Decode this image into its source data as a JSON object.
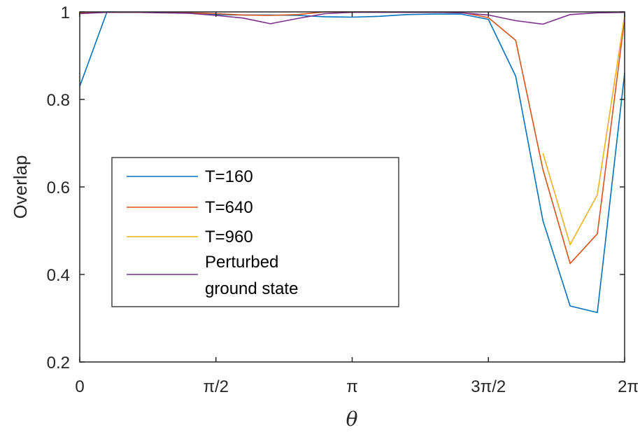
{
  "chart_data": {
    "type": "line",
    "xlabel": "θ",
    "ylabel": "Overlap",
    "xlim": [
      0,
      6.283185307
    ],
    "ylim": [
      0.2,
      1.0
    ],
    "grid": false,
    "legend_position": "center-left",
    "x_ticks": [
      {
        "value": 0,
        "label": "0"
      },
      {
        "value": 1.570796327,
        "label": "π/2"
      },
      {
        "value": 3.141592654,
        "label": "π"
      },
      {
        "value": 4.71238898,
        "label": "3π/2"
      },
      {
        "value": 6.283185307,
        "label": "2π"
      }
    ],
    "y_ticks": [
      {
        "value": 0.2,
        "label": "0.2"
      },
      {
        "value": 0.4,
        "label": "0.4"
      },
      {
        "value": 0.6,
        "label": "0.6"
      },
      {
        "value": 0.8,
        "label": "0.8"
      },
      {
        "value": 1.0,
        "label": "1"
      }
    ],
    "series": [
      {
        "name": "T=160",
        "color": "#0072BD",
        "points": [
          [
            0,
            0.83
          ],
          [
            0.314,
            1.0
          ],
          [
            0.628,
            0.999
          ],
          [
            0.942,
            0.999
          ],
          [
            1.257,
            0.998
          ],
          [
            1.571,
            0.994
          ],
          [
            1.885,
            0.993
          ],
          [
            2.199,
            0.993
          ],
          [
            2.513,
            0.992
          ],
          [
            2.827,
            0.989
          ],
          [
            3.142,
            0.988
          ],
          [
            3.456,
            0.99
          ],
          [
            3.77,
            0.994
          ],
          [
            4.084,
            0.995
          ],
          [
            4.398,
            0.995
          ],
          [
            4.712,
            0.983
          ],
          [
            5.027,
            0.853
          ],
          [
            5.341,
            0.523
          ],
          [
            5.655,
            0.328
          ],
          [
            5.969,
            0.313
          ],
          [
            6.283,
            0.86
          ]
        ]
      },
      {
        "name": "T=640",
        "color": "#D95319",
        "points": [
          [
            0,
            0.998
          ],
          [
            0.314,
            0.999
          ],
          [
            0.628,
            0.999
          ],
          [
            0.942,
            0.999
          ],
          [
            1.257,
            0.998
          ],
          [
            1.571,
            0.996
          ],
          [
            1.885,
            0.993
          ],
          [
            2.199,
            0.992
          ],
          [
            2.513,
            0.994
          ],
          [
            2.827,
            1.0
          ],
          [
            3.142,
            1.0
          ],
          [
            3.456,
            1.0
          ],
          [
            3.77,
            0.999
          ],
          [
            4.084,
            0.999
          ],
          [
            4.398,
            0.999
          ],
          [
            4.712,
            0.987
          ],
          [
            5.027,
            0.935
          ],
          [
            5.341,
            0.64
          ],
          [
            5.655,
            0.425
          ],
          [
            5.969,
            0.493
          ],
          [
            6.283,
            0.985
          ]
        ]
      },
      {
        "name": "T=960",
        "color": "#EDB120",
        "points": [
          [
            5.341,
            0.677
          ],
          [
            5.655,
            0.468
          ],
          [
            5.969,
            0.582
          ],
          [
            6.283,
            0.992
          ]
        ]
      },
      {
        "name": "Perturbed\nground state",
        "color": "#7E2F8E",
        "points": [
          [
            0,
            0.996
          ],
          [
            0.314,
            0.999
          ],
          [
            0.628,
            0.999
          ],
          [
            0.942,
            0.998
          ],
          [
            1.257,
            0.997
          ],
          [
            1.571,
            0.992
          ],
          [
            1.885,
            0.986
          ],
          [
            2.199,
            0.973
          ],
          [
            2.513,
            0.985
          ],
          [
            2.827,
            0.996
          ],
          [
            3.142,
            0.999
          ],
          [
            3.456,
            0.999
          ],
          [
            3.77,
            0.999
          ],
          [
            4.084,
            0.999
          ],
          [
            4.398,
            0.998
          ],
          [
            4.712,
            0.993
          ],
          [
            5.027,
            0.98
          ],
          [
            5.341,
            0.972
          ],
          [
            5.655,
            0.994
          ],
          [
            5.969,
            0.998
          ],
          [
            6.283,
            0.999
          ]
        ]
      }
    ]
  }
}
